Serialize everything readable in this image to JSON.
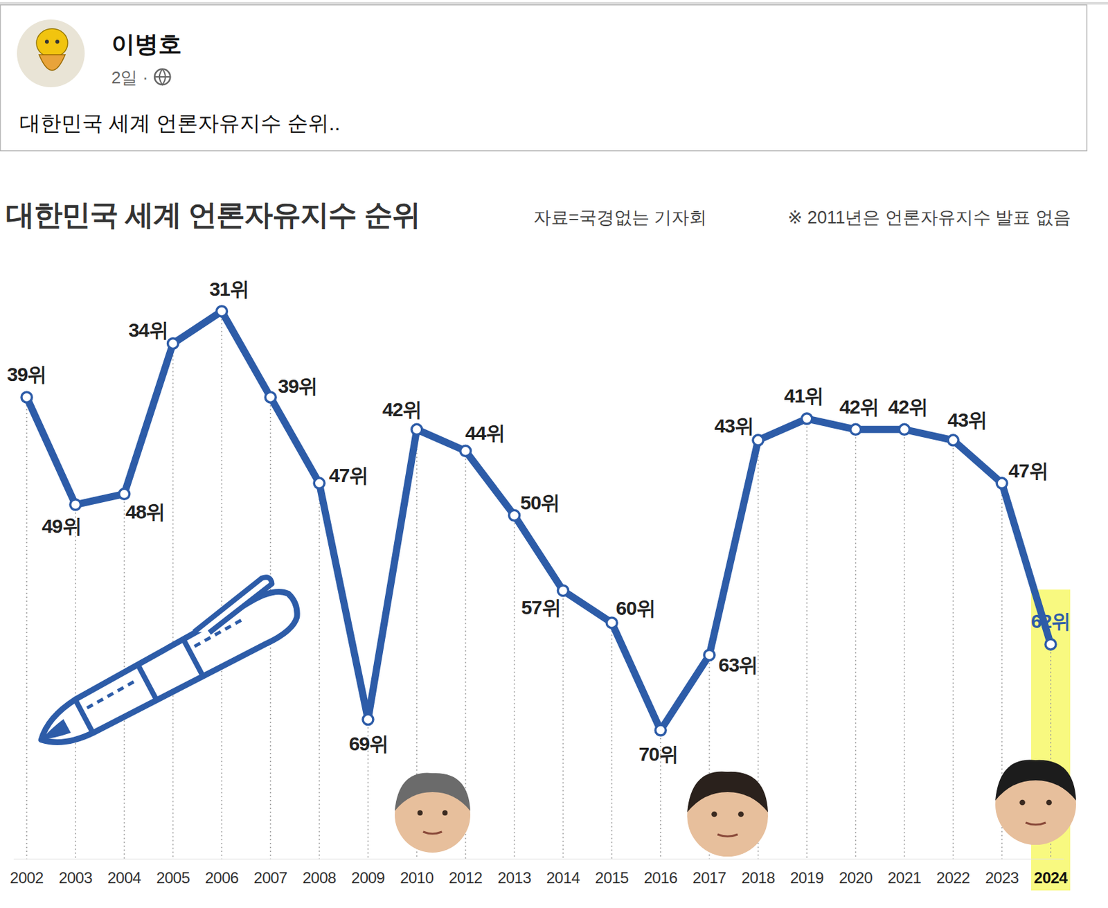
{
  "post": {
    "author": "이병호",
    "time": "2일 ·",
    "text": "대한민국 세계 언론자유지수 순위.."
  },
  "chart_data": {
    "type": "line",
    "title": "대한민국 세계 언론자유지수 순위",
    "source": "자료=국경없는 기자회",
    "note": "※ 2011년은 언론자유지수 발표 없음",
    "categories": [
      "2002",
      "2003",
      "2004",
      "2005",
      "2006",
      "2007",
      "2008",
      "2009",
      "2010",
      "2012",
      "2013",
      "2014",
      "2015",
      "2016",
      "2017",
      "2018",
      "2019",
      "2020",
      "2021",
      "2022",
      "2023",
      "2024"
    ],
    "values": [
      39,
      49,
      48,
      34,
      31,
      39,
      47,
      69,
      42,
      44,
      50,
      57,
      60,
      70,
      63,
      43,
      41,
      42,
      42,
      43,
      47,
      62
    ],
    "value_labels": [
      "39위",
      "49위",
      "48위",
      "34위",
      "31위",
      "39위",
      "47위",
      "69위",
      "42위",
      "44위",
      "50위",
      "57위",
      "60위",
      "70위",
      "63위",
      "43위",
      "41위",
      "42위",
      "42위",
      "43위",
      "47위",
      "62위"
    ],
    "data_labels": true,
    "color": "#2d5ca8",
    "marker": "circle",
    "ylim": [
      82,
      25
    ],
    "grid": true,
    "tick_labels": "x"
  }
}
